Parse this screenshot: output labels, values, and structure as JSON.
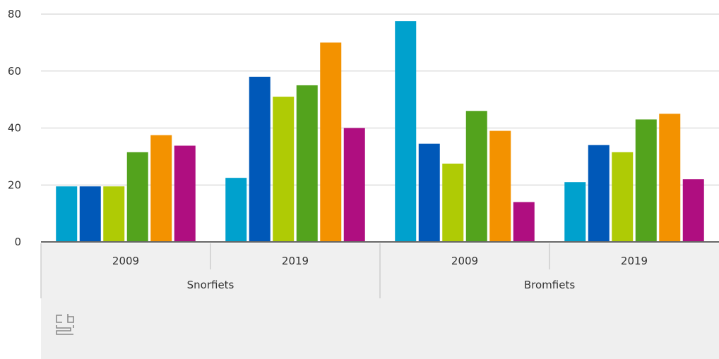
{
  "chart_data": {
    "type": "bar",
    "title": "",
    "xlabel": "",
    "ylabel": "",
    "ylim": [
      0,
      80
    ],
    "yticks": [
      0,
      20,
      40,
      60,
      80
    ],
    "grid": true,
    "legend": "none",
    "groups": [
      {
        "label": "Snorfiets",
        "subgroups": [
          {
            "label": "2009",
            "values": [
              19.5,
              19.5,
              19.5,
              31.5,
              37.5,
              33.8
            ]
          },
          {
            "label": "2019",
            "values": [
              22.5,
              58,
              51,
              55,
              70,
              40
            ]
          }
        ]
      },
      {
        "label": "Bromfiets",
        "subgroups": [
          {
            "label": "2009",
            "values": [
              77.5,
              34.5,
              27.5,
              46,
              39,
              14
            ]
          },
          {
            "label": "2019",
            "values": [
              21,
              34,
              31.5,
              43,
              45,
              22
            ]
          }
        ]
      }
    ],
    "series_colors": [
      "#00a1cd",
      "#0058b8",
      "#afcb05",
      "#53a31d",
      "#f39200",
      "#af0e80"
    ]
  },
  "footer": {
    "logo_icon": "cbs-logo-icon"
  }
}
